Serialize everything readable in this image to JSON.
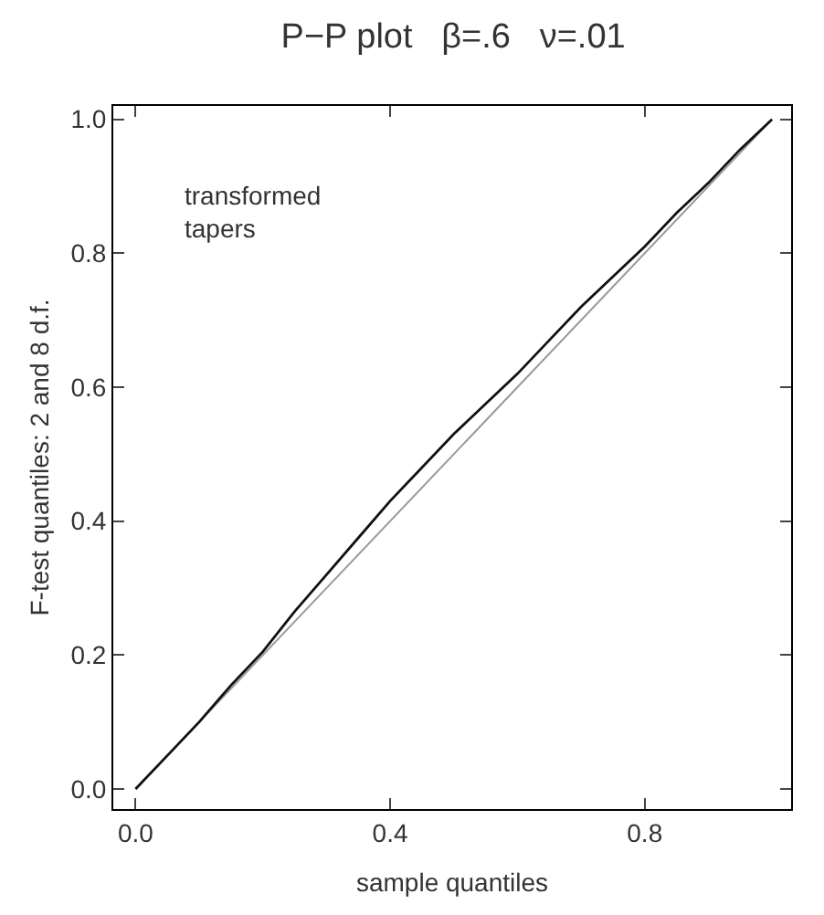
{
  "chart_data": {
    "type": "line",
    "title": "P−P plot   β=.6   ν=.01",
    "xlabel": "sample quantiles",
    "ylabel": "F-test quantiles: 2 and 8 d.f.",
    "annotations": [
      "transformed\ntapers"
    ],
    "series": [
      {
        "color": "#999999",
        "x": [
          0,
          1
        ],
        "values": [
          0,
          1
        ]
      },
      {
        "color": "#111111",
        "x": [
          0,
          0.05,
          0.1,
          0.15,
          0.2,
          0.25,
          0.3,
          0.35,
          0.4,
          0.45,
          0.5,
          0.55,
          0.6,
          0.65,
          0.7,
          0.75,
          0.8,
          0.85,
          0.9,
          0.95,
          1
        ],
        "values": [
          0,
          0.05,
          0.1,
          0.155,
          0.205,
          0.265,
          0.32,
          0.375,
          0.43,
          0.48,
          0.53,
          0.575,
          0.62,
          0.67,
          0.72,
          0.765,
          0.81,
          0.86,
          0.905,
          0.955,
          1
        ]
      }
    ],
    "xlim": [
      -0.035,
      1.03
    ],
    "ylim": [
      -0.03,
      1.02
    ],
    "xticks": [
      {
        "value": 0,
        "label": "0.0"
      },
      0.4,
      0.8
    ],
    "yticks": [
      {
        "value": 0,
        "label": "0.0"
      },
      0.2,
      0.4,
      0.6,
      0.8,
      {
        "value": 1,
        "label": "1.0"
      }
    ],
    "marker": "none",
    "line_style": "solid"
  }
}
